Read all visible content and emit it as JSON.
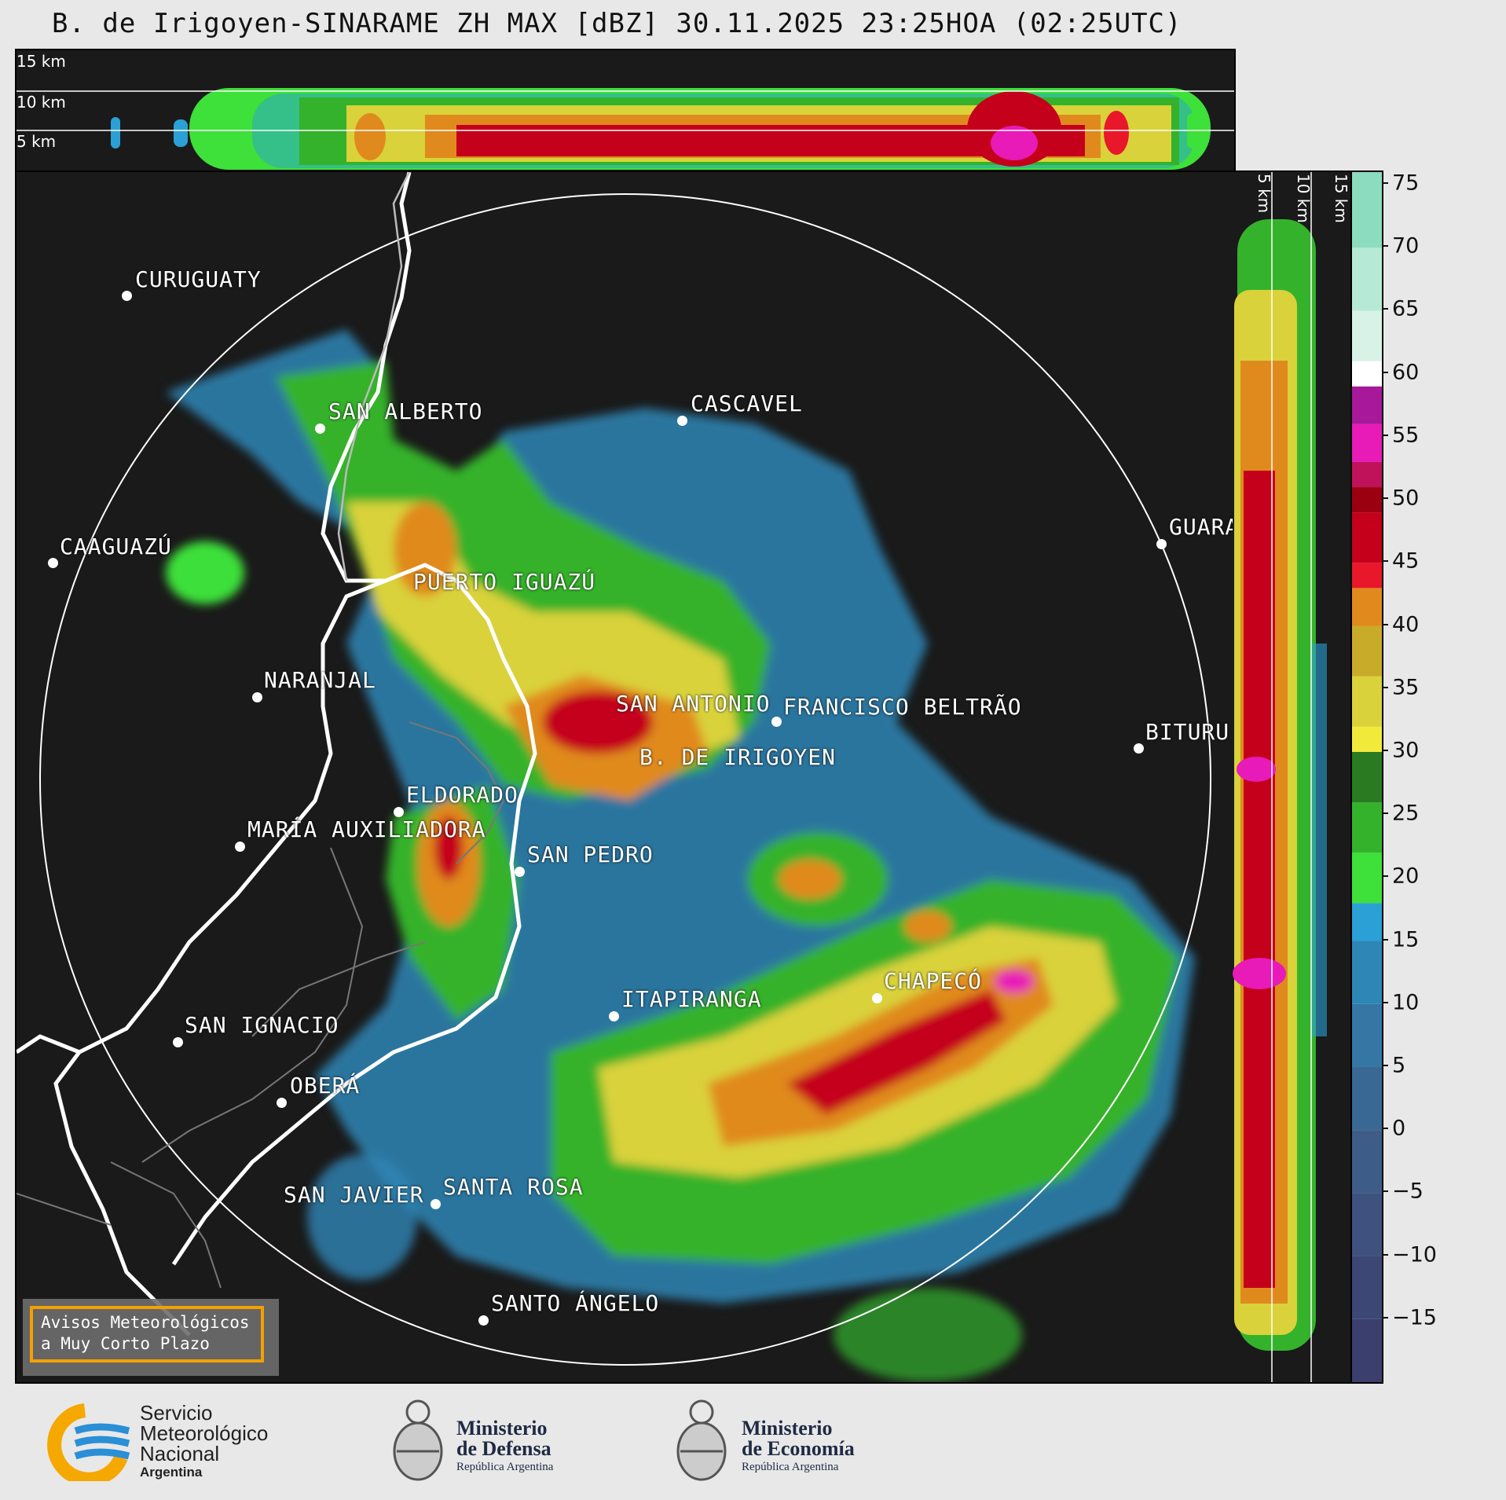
{
  "title": "B. de Irigoyen-SINARAME ZH MAX [dBZ] 30.11.2025 23:25HOA (02:25UTC)",
  "top_panel_altitudes": [
    "15 km",
    "10 km",
    "5 km"
  ],
  "side_panel_altitudes": [
    "5 km",
    "10 km",
    "15 km"
  ],
  "cities": [
    {
      "name": "CURUGUATY"
    },
    {
      "name": "SAN ALBERTO"
    },
    {
      "name": "CASCAVEL"
    },
    {
      "name": "CAAGUAZÚ"
    },
    {
      "name": "GUARA"
    },
    {
      "name": "PUERTO IGUAZÚ"
    },
    {
      "name": "NARANJAL"
    },
    {
      "name": "SAN ANTONIO"
    },
    {
      "name": "FRANCISCO BELTRÃO"
    },
    {
      "name": "BITURU"
    },
    {
      "name": "B. DE IRIGOYEN"
    },
    {
      "name": "ELDORADO"
    },
    {
      "name": "MARÍA AUXILIADORA"
    },
    {
      "name": "SAN PEDRO"
    },
    {
      "name": "CHAPECÓ"
    },
    {
      "name": "ITAPIRANGA"
    },
    {
      "name": "SAN IGNACIO"
    },
    {
      "name": "OBERÁ"
    },
    {
      "name": "SAN JAVIER"
    },
    {
      "name": "SANTA ROSA"
    },
    {
      "name": "SANTO ÁNGELO"
    }
  ],
  "colorbar": {
    "unit": "dBZ",
    "min": -20,
    "max": 76,
    "ticks": [
      "75",
      "70",
      "65",
      "60",
      "55",
      "50",
      "45",
      "40",
      "35",
      "30",
      "25",
      "20",
      "15",
      "10",
      "5",
      "0",
      "−5",
      "−10",
      "−15"
    ],
    "segments": [
      {
        "from": -20,
        "to": -15,
        "color": "#3a3f6e"
      },
      {
        "from": -15,
        "to": -10,
        "color": "#3d4775"
      },
      {
        "from": -10,
        "to": -5,
        "color": "#3e517f"
      },
      {
        "from": -5,
        "to": 0,
        "color": "#3d5c88"
      },
      {
        "from": 0,
        "to": 5,
        "color": "#3a6894"
      },
      {
        "from": 5,
        "to": 10,
        "color": "#3576a4"
      },
      {
        "from": 10,
        "to": 15,
        "color": "#2e86b6"
      },
      {
        "from": 15,
        "to": 18,
        "color": "#2aa0d6"
      },
      {
        "from": 18,
        "to": 22,
        "color": "#3ee03a"
      },
      {
        "from": 22,
        "to": 26,
        "color": "#35b22c"
      },
      {
        "from": 26,
        "to": 30,
        "color": "#2a7a22"
      },
      {
        "from": 30,
        "to": 32,
        "color": "#f2ea3a"
      },
      {
        "from": 32,
        "to": 36,
        "color": "#d9d23a"
      },
      {
        "from": 36,
        "to": 40,
        "color": "#c9ab2a"
      },
      {
        "from": 40,
        "to": 43,
        "color": "#e08a1e"
      },
      {
        "from": 43,
        "to": 45,
        "color": "#e8182a"
      },
      {
        "from": 45,
        "to": 49,
        "color": "#c4001a"
      },
      {
        "from": 49,
        "to": 51,
        "color": "#9a0010"
      },
      {
        "from": 51,
        "to": 53,
        "color": "#c0125a"
      },
      {
        "from": 53,
        "to": 56,
        "color": "#e81ab8"
      },
      {
        "from": 56,
        "to": 59,
        "color": "#a8189a"
      },
      {
        "from": 59,
        "to": 61,
        "color": "#ffffff"
      },
      {
        "from": 61,
        "to": 65,
        "color": "#d8f2e8"
      },
      {
        "from": 65,
        "to": 70,
        "color": "#b6ead6"
      },
      {
        "from": 70,
        "to": 76,
        "color": "#8cdcc0"
      }
    ]
  },
  "avisos": {
    "line1": "Avisos Meteorológicos",
    "line2": "a Muy Corto Plazo"
  },
  "logos": {
    "smn": {
      "line1": "Servicio",
      "line2": "Meteorológico",
      "line3": "Nacional",
      "line4": "Argentina"
    },
    "defensa": {
      "line1": "Ministerio",
      "line2": "de Defensa",
      "line3": "República Argentina"
    },
    "economia": {
      "line1": "Ministerio",
      "line2": "de Economía",
      "line3": "República Argentina"
    }
  },
  "colors": {
    "background": "#e8e8e8",
    "panel": "#1a1a1a",
    "avisos_border": "#f5a000",
    "smn_blue": "#2a8fd6",
    "smn_orange": "#f5a800"
  }
}
